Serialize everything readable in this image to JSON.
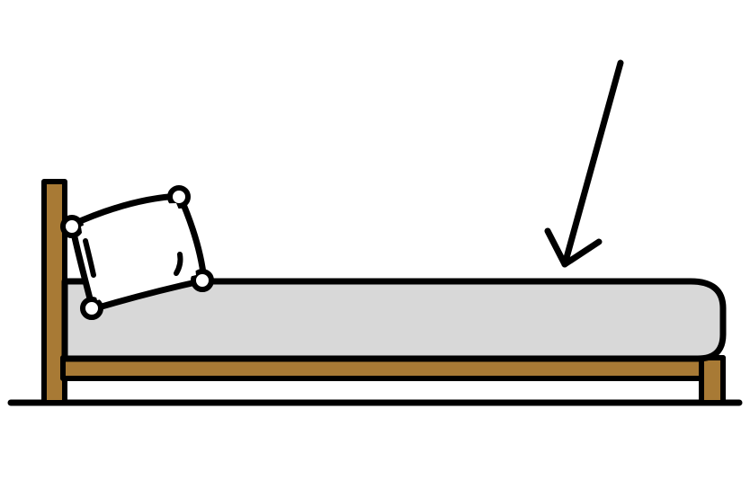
{
  "illustration": {
    "subject": "bed",
    "parts": [
      "bed-frame",
      "headboard",
      "mattress",
      "pillow",
      "pointer-arrow",
      "floor-line"
    ],
    "arrow_target": "mattress",
    "colors": {
      "outline": "#000000",
      "frame_wood": "#a87a35",
      "mattress_fill": "#d8d8d8",
      "pillow_fill": "#ffffff",
      "background": "#ffffff"
    }
  }
}
